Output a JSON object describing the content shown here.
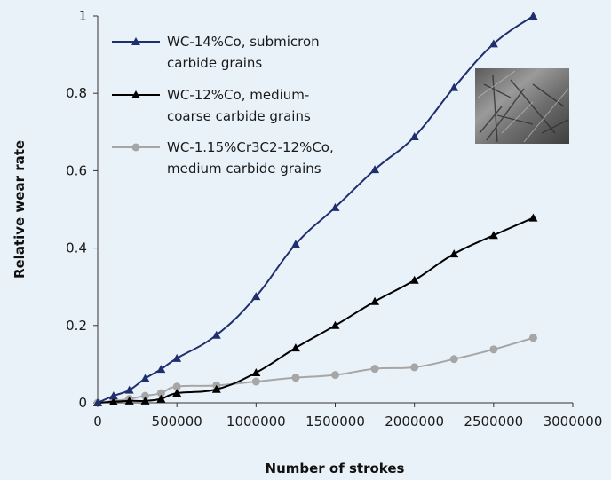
{
  "chart_data": {
    "type": "line",
    "title": "",
    "xlabel": "Number of strokes",
    "ylabel": "Relative wear rate",
    "xlim": [
      0,
      3000000
    ],
    "ylim": [
      0,
      1
    ],
    "xticks": [
      0,
      500000,
      1000000,
      1500000,
      2000000,
      2500000,
      3000000
    ],
    "xtick_labels": [
      "0",
      "500000",
      "1000000",
      "1500000",
      "2000000",
      "2500000",
      "3000000"
    ],
    "yticks": [
      0,
      0.2,
      0.4,
      0.6,
      0.8,
      1
    ],
    "ytick_labels": [
      "0",
      "0.2",
      "0.4",
      "0.6",
      "0.8",
      "1"
    ],
    "grid": false,
    "legend_position": "top-left",
    "inset_image": "worn-surface-micrograph",
    "series": [
      {
        "name_lines": [
          "WC-14%Co, submicron",
          "carbide grains"
        ],
        "color": "#1f2f6e",
        "marker": "triangle",
        "points": [
          [
            0,
            0
          ],
          [
            100000,
            0.018
          ],
          [
            200000,
            0.033
          ],
          [
            300000,
            0.063
          ],
          [
            400000,
            0.087
          ],
          [
            500000,
            0.115
          ],
          [
            750000,
            0.175
          ],
          [
            1000000,
            0.275
          ],
          [
            1250000,
            0.41
          ],
          [
            1500000,
            0.505
          ],
          [
            1750000,
            0.603
          ],
          [
            2000000,
            0.688
          ],
          [
            2250000,
            0.815
          ],
          [
            2500000,
            0.928
          ],
          [
            2750000,
            1.0
          ]
        ]
      },
      {
        "name_lines": [
          "WC-12%Co, medium-",
          "coarse carbide grains"
        ],
        "color": "#000000",
        "marker": "triangle",
        "points": [
          [
            0,
            0
          ],
          [
            100000,
            0.003
          ],
          [
            200000,
            0.005
          ],
          [
            300000,
            0.005
          ],
          [
            400000,
            0.01
          ],
          [
            500000,
            0.025
          ],
          [
            750000,
            0.035
          ],
          [
            1000000,
            0.078
          ],
          [
            1250000,
            0.142
          ],
          [
            1500000,
            0.2
          ],
          [
            1750000,
            0.262
          ],
          [
            2000000,
            0.317
          ],
          [
            2250000,
            0.385
          ],
          [
            2500000,
            0.433
          ],
          [
            2750000,
            0.478
          ]
        ]
      },
      {
        "name_lines": [
          "WC-1.15%Cr3C2-12%Co,",
          "medium carbide grains"
        ],
        "color": "#a6a6a6",
        "marker": "circle",
        "points": [
          [
            0,
            0
          ],
          [
            100000,
            0.005
          ],
          [
            200000,
            0.01
          ],
          [
            300000,
            0.018
          ],
          [
            400000,
            0.025
          ],
          [
            500000,
            0.042
          ],
          [
            750000,
            0.045
          ],
          [
            1000000,
            0.055
          ],
          [
            1250000,
            0.065
          ],
          [
            1500000,
            0.072
          ],
          [
            1750000,
            0.088
          ],
          [
            2000000,
            0.092
          ],
          [
            2250000,
            0.113
          ],
          [
            2500000,
            0.138
          ],
          [
            2750000,
            0.168
          ]
        ]
      }
    ]
  }
}
